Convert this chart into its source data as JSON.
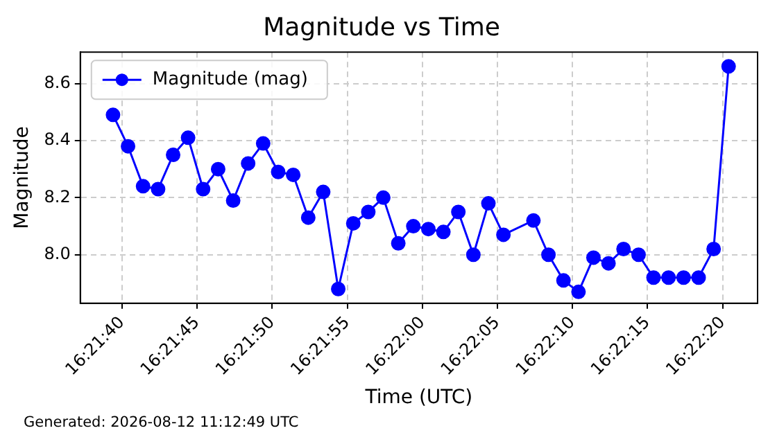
{
  "chart_data": {
    "type": "line",
    "title": "Magnitude vs Time",
    "xlabel": "Time (UTC)",
    "ylabel": "Magnitude",
    "annotations": [
      "Generated: 2026-08-12 11:12:49 UTC"
    ],
    "x": [
      16.360944,
      16.361222,
      16.3615,
      16.361778,
      16.362056,
      16.362333,
      16.362611,
      16.362889,
      16.363167,
      16.363444,
      16.363722,
      16.364,
      16.364278,
      16.364556,
      16.364833,
      16.365111,
      16.365389,
      16.365667,
      16.365944,
      16.366222,
      16.3665,
      16.366778,
      16.367056,
      16.367333,
      16.367611,
      16.367889,
      16.368167,
      16.368722,
      16.369,
      16.369278,
      16.369556,
      16.369833,
      16.370111,
      16.370389,
      16.370667,
      16.370944,
      16.371222,
      16.3715,
      16.371778,
      16.372056,
      16.372333
    ],
    "series": [
      {
        "name": "Magnitude (mag)",
        "color": "#0000ff",
        "values": [
          8.49,
          8.38,
          8.24,
          8.23,
          8.35,
          8.41,
          8.23,
          8.3,
          8.19,
          8.32,
          8.39,
          8.29,
          8.28,
          8.13,
          8.22,
          7.88,
          8.11,
          8.15,
          8.2,
          8.04,
          8.1,
          8.09,
          8.08,
          8.15,
          8.0,
          8.18,
          8.07,
          8.12,
          8.0,
          7.91,
          7.87,
          7.99,
          7.97,
          8.02,
          8.0,
          7.92,
          7.92,
          7.92,
          7.92,
          8.02,
          8.66
        ]
      }
    ],
    "xlim": [
      16.360339,
      16.372869
    ],
    "xticks": [
      {
        "value": 16.361111,
        "label": "16:21:40"
      },
      {
        "value": 16.3625,
        "label": "16:21:45"
      },
      {
        "value": 16.363889,
        "label": "16:21:50"
      },
      {
        "value": 16.365278,
        "label": "16:21:55"
      },
      {
        "value": 16.366667,
        "label": "16:22:00"
      },
      {
        "value": 16.368056,
        "label": "16:22:05"
      },
      {
        "value": 16.369444,
        "label": "16:22:10"
      },
      {
        "value": 16.370833,
        "label": "16:22:15"
      },
      {
        "value": 16.372222,
        "label": "16:22:20"
      }
    ],
    "ylim": [
      7.83,
      8.71
    ],
    "yticks": [
      {
        "value": 8.0,
        "label": "8.0"
      },
      {
        "value": 8.2,
        "label": "8.2"
      },
      {
        "value": 8.4,
        "label": "8.4"
      },
      {
        "value": 8.6,
        "label": "8.6"
      }
    ],
    "grid": true,
    "legend": "top left",
    "marker": "circle",
    "line_style": "solid"
  }
}
